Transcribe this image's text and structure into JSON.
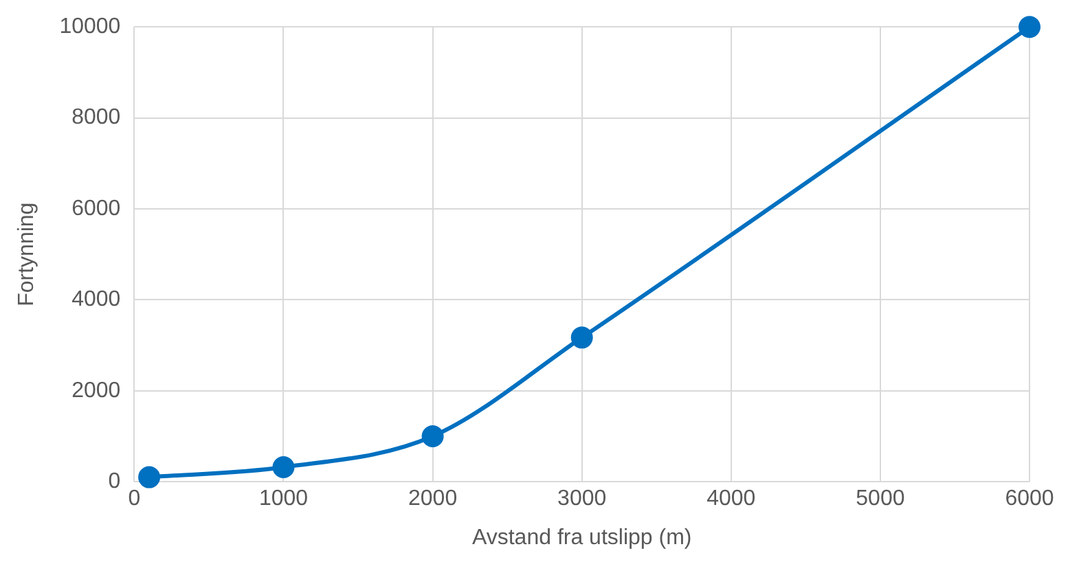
{
  "chart_data": {
    "type": "line",
    "xlabel": "Avstand fra utslipp (m)",
    "ylabel": "Fortynning",
    "x": [
      100,
      1000,
      2000,
      3000,
      6000
    ],
    "series": [
      {
        "color": "#0070c0",
        "values": [
          100,
          320,
          1000,
          3170,
          10000
        ]
      }
    ],
    "xlim": [
      0,
      6000
    ],
    "xticks": [
      0,
      1000,
      2000,
      3000,
      4000,
      5000,
      6000
    ],
    "ylim": [
      0,
      10000
    ],
    "yticks": [
      0,
      2000,
      4000,
      6000,
      8000,
      10000
    ],
    "grid": true,
    "marker": "circle",
    "line_style": "solid"
  }
}
